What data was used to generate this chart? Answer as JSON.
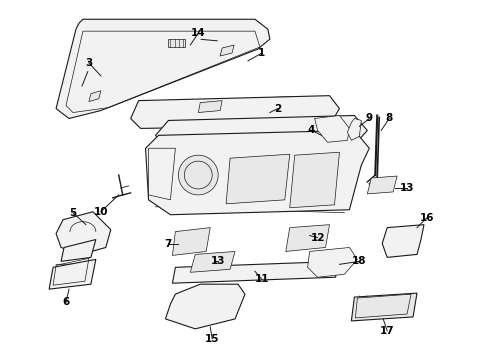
{
  "background_color": "#ffffff",
  "line_color": "#1a1a1a",
  "label_color": "#000000",
  "fig_width": 4.9,
  "fig_height": 3.6,
  "dpi": 100,
  "part_fill": "#f2f2f2",
  "part_fill2": "#e8e8e8",
  "label_fontsize": 7.5
}
